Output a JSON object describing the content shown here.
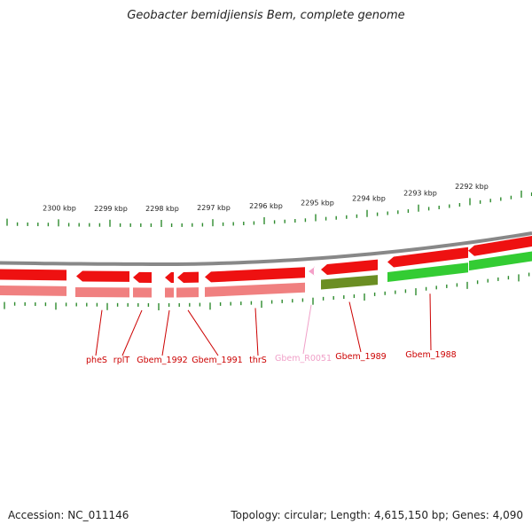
{
  "title": "Geobacter bemidjiensis Bem, complete genome",
  "footer": {
    "accession": "Accession: NC_011146",
    "summary": "Topology: circular; Length: 4,615,150 bp; Genes: 4,090"
  },
  "ruler": {
    "unit": "kbp",
    "labels": [
      "2300 kbp",
      "2299 kbp",
      "2298 kbp",
      "2297 kbp",
      "2296 kbp",
      "2295 kbp",
      "2294 kbp",
      "2293 kbp",
      "2292 kbp"
    ]
  },
  "colors": {
    "tick": "#2e8b2e",
    "backbone": "#888888",
    "gene_forward_top": "#ee1111",
    "gene_lower_red": "#f08080",
    "gene_green": "#33cc33",
    "gene_olive": "#6b8e23",
    "rna_pink": "#f4a0c8",
    "label_red": "#cc0000",
    "label_pink": "#f0a0c8"
  },
  "genes": [
    {
      "name": "pheS",
      "color": "red"
    },
    {
      "name": "rplT",
      "color": "red"
    },
    {
      "name": "Gbem_1992",
      "color": "red"
    },
    {
      "name": "Gbem_1991",
      "color": "red"
    },
    {
      "name": "thrS",
      "color": "red"
    },
    {
      "name": "Gbem_R0051",
      "color": "pink"
    },
    {
      "name": "Gbem_1989",
      "color": "red"
    },
    {
      "name": "Gbem_1988",
      "color": "red"
    }
  ]
}
